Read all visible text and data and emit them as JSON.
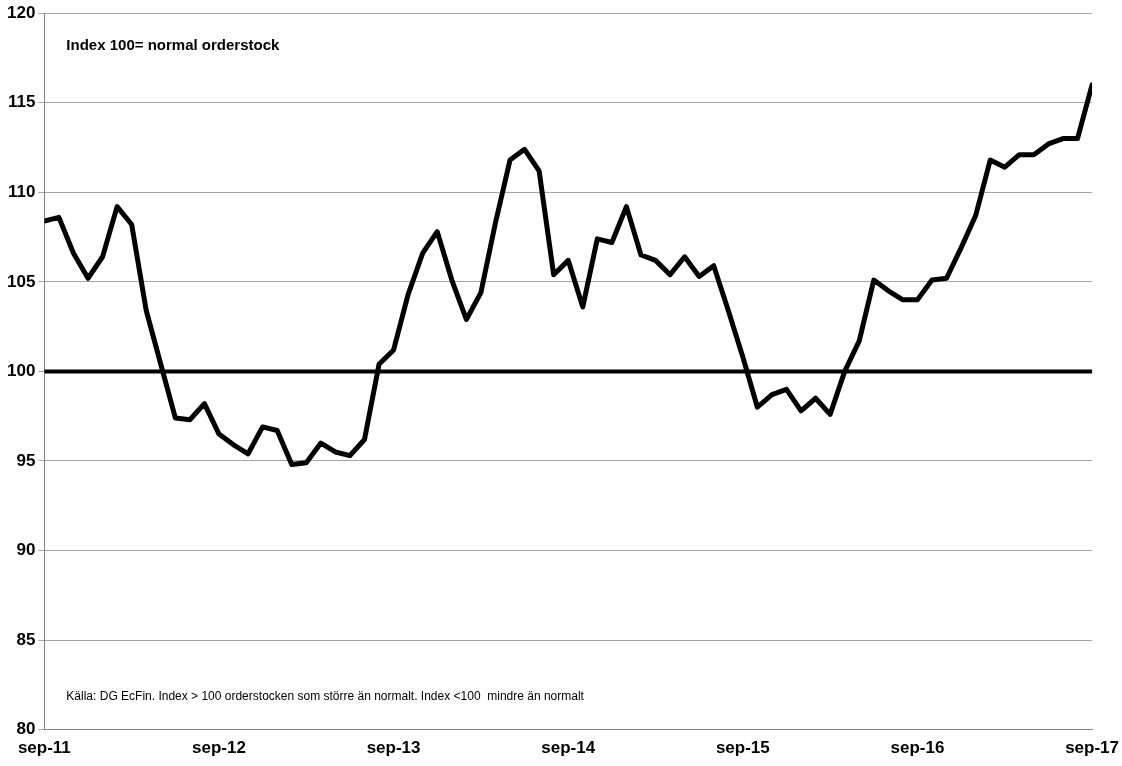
{
  "chart_data": {
    "type": "line",
    "annotations": [
      "Index 100= normal orderstock",
      "Källa: DG EcFin. Index > 100 orderstocken som större än normalt. Index <100  mindre än normalt"
    ],
    "x": [
      "2011-09",
      "2011-10",
      "2011-11",
      "2011-12",
      "2012-01",
      "2012-02",
      "2012-03",
      "2012-04",
      "2012-05",
      "2012-06",
      "2012-07",
      "2012-08",
      "2012-09",
      "2012-10",
      "2012-11",
      "2012-12",
      "2013-01",
      "2013-02",
      "2013-03",
      "2013-04",
      "2013-05",
      "2013-06",
      "2013-07",
      "2013-08",
      "2013-09",
      "2013-10",
      "2013-11",
      "2013-12",
      "2014-01",
      "2014-02",
      "2014-03",
      "2014-04",
      "2014-05",
      "2014-06",
      "2014-07",
      "2014-08",
      "2014-09",
      "2014-10",
      "2014-11",
      "2014-12",
      "2015-01",
      "2015-02",
      "2015-03",
      "2015-04",
      "2015-05",
      "2015-06",
      "2015-07",
      "2015-08",
      "2015-09",
      "2015-10",
      "2015-11",
      "2015-12",
      "2016-01",
      "2016-02",
      "2016-03",
      "2016-04",
      "2016-05",
      "2016-06",
      "2016-07",
      "2016-08",
      "2016-09",
      "2016-10",
      "2016-11",
      "2016-12",
      "2017-01",
      "2017-02",
      "2017-03",
      "2017-04",
      "2017-05",
      "2017-06",
      "2017-07",
      "2017-08",
      "2017-09"
    ],
    "series": [
      {
        "color": "#000000",
        "values": [
          108.4,
          108.6,
          106.6,
          105.2,
          106.4,
          109.2,
          108.2,
          103.4,
          100.4,
          97.4,
          97.3,
          98.2,
          96.5,
          95.9,
          95.4,
          96.9,
          96.7,
          94.8,
          94.9,
          96.0,
          95.5,
          95.3,
          96.2,
          100.4,
          101.2,
          104.3,
          106.6,
          107.8,
          105.1,
          102.9,
          104.4,
          108.3,
          111.8,
          112.4,
          111.2,
          105.4,
          106.2,
          103.6,
          107.4,
          107.2,
          109.2,
          106.5,
          106.2,
          105.4,
          106.4,
          105.3,
          105.9,
          103.4,
          100.8,
          98.0,
          98.7,
          99.0,
          97.8,
          98.5,
          97.6,
          100.0,
          101.7,
          105.1,
          104.5,
          104.0,
          104.0,
          105.1,
          105.2,
          106.9,
          108.7,
          111.8,
          111.4,
          112.1,
          112.1,
          112.7,
          113.0,
          113.0,
          116.0
        ]
      }
    ],
    "xlim": [
      "2011-09",
      "2017-09"
    ],
    "xticks": [
      {
        "value": "2011-09",
        "label": "sep-11"
      },
      {
        "value": "2012-09",
        "label": "sep-12"
      },
      {
        "value": "2013-09",
        "label": "sep-13"
      },
      {
        "value": "2014-09",
        "label": "sep-14"
      },
      {
        "value": "2015-09",
        "label": "sep-15"
      },
      {
        "value": "2016-09",
        "label": "sep-16"
      },
      {
        "value": "2017-09",
        "label": "sep-17"
      }
    ],
    "ylim": [
      80,
      120
    ],
    "yticks": [
      80,
      85,
      90,
      95,
      100,
      105,
      110,
      115,
      120
    ],
    "ref_lines": [
      {
        "axis": "y",
        "value": 100,
        "color": "#000000"
      }
    ],
    "grid": "y",
    "legend": false,
    "marker": "none",
    "line_style": "solid"
  }
}
